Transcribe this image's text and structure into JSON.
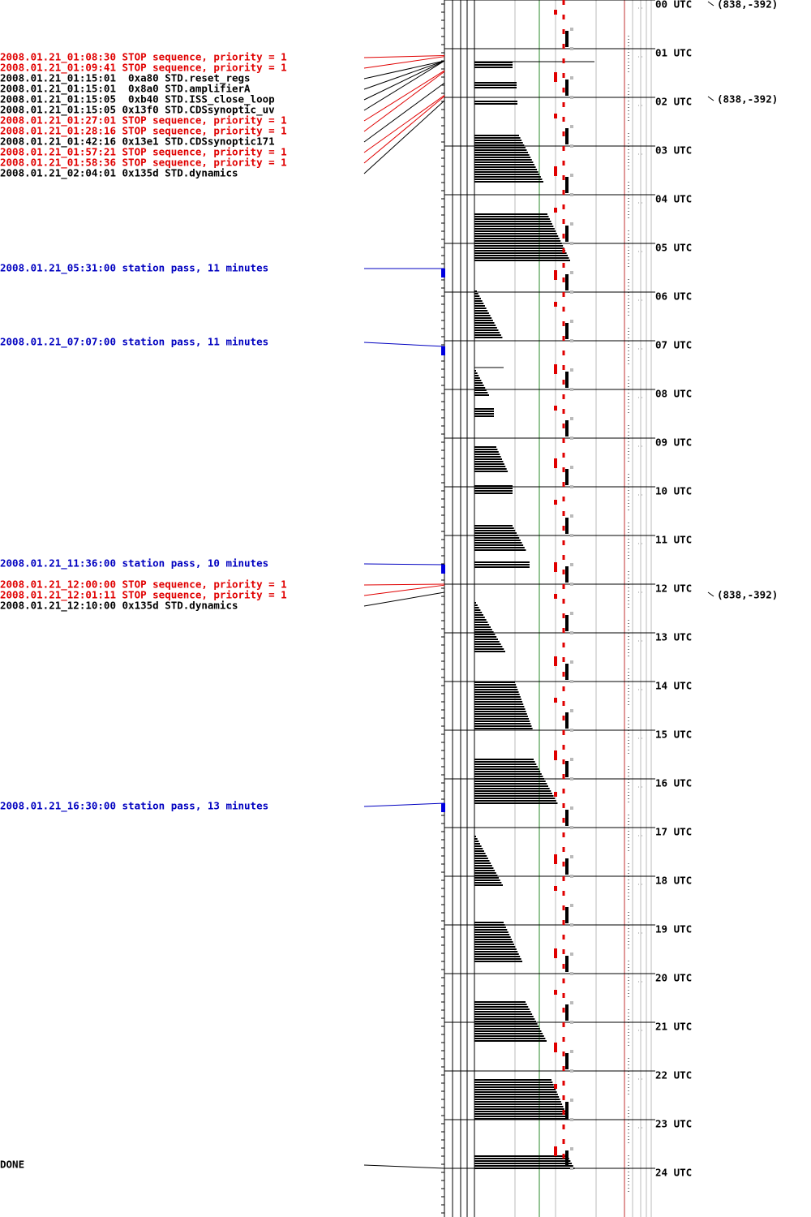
{
  "events": [
    {
      "label": "2008.01.21_01:08:30 STOP sequence, priority = 1",
      "color": "#e00000"
    },
    {
      "label": "2008.01.21_01:09:41 STOP sequence, priority = 1",
      "color": "#e00000"
    },
    {
      "label": "2008.01.21_01:15:01  0xa80 STD.reset_regs",
      "color": "#000000"
    },
    {
      "label": "2008.01.21_01:15:01  0x8a0 STD.amplifierA",
      "color": "#000000"
    },
    {
      "label": "2008.01.21_01:15:05  0xb40 STD.ISS_close_loop",
      "color": "#000000"
    },
    {
      "label": "2008.01.21_01:15:05 0x13f0 STD.CDSsynoptic_uv",
      "color": "#000000"
    },
    {
      "label": "2008.01.21_01:27:01 STOP sequence, priority = 1",
      "color": "#e00000"
    },
    {
      "label": "2008.01.21_01:28:16 STOP sequence, priority = 1",
      "color": "#e00000"
    },
    {
      "label": "2008.01.21_01:42:16 0x13e1 STD.CDSsynoptic171",
      "color": "#000000"
    },
    {
      "label": "2008.01.21_01:57:21 STOP sequence, priority = 1",
      "color": "#e00000"
    },
    {
      "label": "2008.01.21_01:58:36 STOP sequence, priority = 1",
      "color": "#e00000"
    },
    {
      "label": "2008.01.21_02:04:01 0x135d STD.dynamics",
      "color": "#000000"
    },
    {
      "label": "2008.01.21_05:31:00 station pass, 11 minutes",
      "color": "#0000c0"
    },
    {
      "label": "2008.01.21_07:07:00 station pass, 11 minutes",
      "color": "#0000c0"
    },
    {
      "label": "2008.01.21_11:36:00 station pass, 10 minutes",
      "color": "#0000c0"
    },
    {
      "label": "2008.01.21_12:00:00 STOP sequence, priority = 1",
      "color": "#e00000"
    },
    {
      "label": "2008.01.21_12:01:11 STOP sequence, priority = 1",
      "color": "#e00000"
    },
    {
      "label": "2008.01.21_12:10:00 0x135d STD.dynamics",
      "color": "#000000"
    },
    {
      "label": "2008.01.21_16:30:00 station pass, 13 minutes",
      "color": "#0000c0"
    }
  ],
  "done": "DONE",
  "hours": [
    "00 UTC",
    "01 UTC",
    "02 UTC",
    "03 UTC",
    "04 UTC",
    "05 UTC",
    "06 UTC",
    "07 UTC",
    "08 UTC",
    "09 UTC",
    "10 UTC",
    "11 UTC",
    "12 UTC",
    "13 UTC",
    "14 UTC",
    "15 UTC",
    "16 UTC",
    "17 UTC",
    "18 UTC",
    "19 UTC",
    "20 UTC",
    "21 UTC",
    "22 UTC",
    "23 UTC",
    "24 UTC"
  ],
  "markers": [
    "(838,-392)",
    "(838,-392)",
    "(838,-392)"
  ]
}
